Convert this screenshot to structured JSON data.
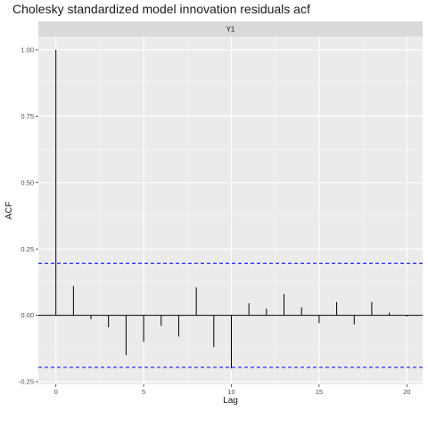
{
  "chart_data": {
    "type": "bar",
    "title": "Cholesky standardized model innovation residuals acf",
    "facet_label": "Y1",
    "xlabel": "Lag",
    "ylabel": "ACF",
    "x": [
      0,
      1,
      2,
      3,
      4,
      5,
      6,
      7,
      8,
      9,
      10,
      11,
      12,
      13,
      14,
      15,
      16,
      17,
      18,
      19,
      20
    ],
    "values": [
      1.0,
      0.11,
      -0.015,
      -0.045,
      -0.15,
      -0.1,
      -0.04,
      -0.08,
      0.105,
      -0.12,
      -0.2,
      0.045,
      0.025,
      0.08,
      0.03,
      -0.03,
      0.05,
      -0.035,
      0.05,
      0.01,
      -0.005
    ],
    "xlim": [
      -1,
      20.9
    ],
    "ylim": [
      -0.26,
      1.05
    ],
    "x_ticks": [
      0,
      5,
      10,
      15,
      20
    ],
    "y_ticks": [
      -0.25,
      0,
      0.25,
      0.5,
      0.75,
      1.0
    ],
    "x_tick_labels": [
      "0",
      "5",
      "10",
      "15",
      "20"
    ],
    "y_tick_labels": [
      "-0.25",
      "0.00",
      "0.25",
      "0.50",
      "0.75",
      "1.00"
    ],
    "confidence_bounds": [
      0.196,
      -0.196
    ],
    "grid": true,
    "colors": {
      "panel": "#ebebeb",
      "strip": "#d9d9d9",
      "grid_major": "#ffffff",
      "spike": "#000000",
      "bound_line": "#0000ff"
    }
  }
}
